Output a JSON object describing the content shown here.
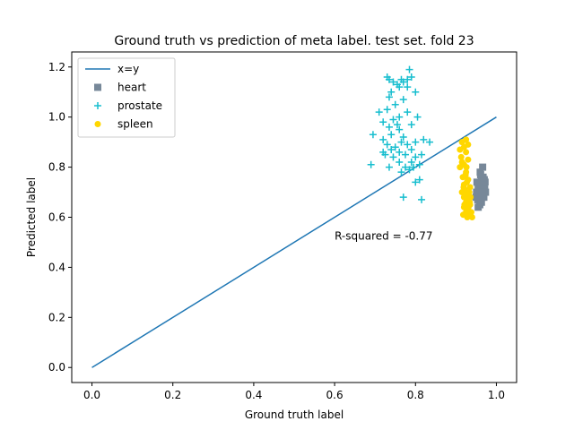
{
  "chart_data": {
    "type": "scatter",
    "title": "Ground truth vs prediction of meta label. test set. fold 23",
    "xlabel": "Ground truth label",
    "ylabel": "Predicted label",
    "xlim": [
      -0.05,
      1.05
    ],
    "ylim": [
      -0.06,
      1.26
    ],
    "xticks": [
      0.0,
      0.2,
      0.4,
      0.6,
      0.8,
      1.0
    ],
    "xtick_labels": [
      "0.0",
      "0.2",
      "0.4",
      "0.6",
      "0.8",
      "1.0"
    ],
    "yticks": [
      0.0,
      0.2,
      0.4,
      0.6,
      0.8,
      1.0,
      1.2
    ],
    "ytick_labels": [
      "0.0",
      "0.2",
      "0.4",
      "0.6",
      "0.8",
      "1.0",
      "1.2"
    ],
    "grid": false,
    "legend_position": "top-left",
    "annotation": {
      "text": "R-squared = -0.77",
      "x": 0.6,
      "y": 0.5
    },
    "reference_line": {
      "name": "x=y",
      "color": "#1f77b4",
      "x": [
        0.0,
        1.0
      ],
      "y": [
        0.0,
        1.0
      ]
    },
    "series": [
      {
        "name": "heart",
        "marker": "square",
        "color": "#778899",
        "points": [
          [
            0.955,
            0.64
          ],
          [
            0.96,
            0.66
          ],
          [
            0.962,
            0.69
          ],
          [
            0.958,
            0.71
          ],
          [
            0.965,
            0.73
          ],
          [
            0.95,
            0.68
          ],
          [
            0.968,
            0.7
          ],
          [
            0.97,
            0.72
          ],
          [
            0.963,
            0.75
          ],
          [
            0.972,
            0.74
          ],
          [
            0.96,
            0.78
          ],
          [
            0.966,
            0.8
          ],
          [
            0.954,
            0.67
          ],
          [
            0.959,
            0.65
          ],
          [
            0.961,
            0.7
          ],
          [
            0.967,
            0.76
          ],
          [
            0.969,
            0.68
          ],
          [
            0.957,
            0.72
          ],
          [
            0.964,
            0.74
          ],
          [
            0.971,
            0.71
          ],
          [
            0.953,
            0.69
          ],
          [
            0.962,
            0.67
          ],
          [
            0.966,
            0.72
          ],
          [
            0.96,
            0.73
          ],
          [
            0.958,
            0.7
          ],
          [
            0.965,
            0.69
          ],
          [
            0.963,
            0.66
          ],
          [
            0.97,
            0.75
          ],
          [
            0.956,
            0.71
          ],
          [
            0.968,
            0.73
          ],
          [
            0.951,
            0.7
          ],
          [
            0.955,
            0.72
          ],
          [
            0.973,
            0.7
          ],
          [
            0.952,
            0.74
          ],
          [
            0.962,
            0.71
          ],
          [
            0.966,
            0.68
          ],
          [
            0.961,
            0.77
          ],
          [
            0.969,
            0.71
          ],
          [
            0.957,
            0.68
          ],
          [
            0.964,
            0.7
          ]
        ]
      },
      {
        "name": "prostate",
        "marker": "plus",
        "color": "#17becf",
        "points": [
          [
            0.735,
            1.15
          ],
          [
            0.745,
            1.14
          ],
          [
            0.765,
            1.15
          ],
          [
            0.78,
            1.15
          ],
          [
            0.77,
            1.14
          ],
          [
            0.73,
            1.16
          ],
          [
            0.755,
            1.13
          ],
          [
            0.785,
            1.19
          ],
          [
            0.79,
            1.16
          ],
          [
            0.76,
            1.12
          ],
          [
            0.74,
            1.1
          ],
          [
            0.78,
            1.12
          ],
          [
            0.77,
            1.07
          ],
          [
            0.8,
            1.1
          ],
          [
            0.735,
            1.08
          ],
          [
            0.75,
            1.05
          ],
          [
            0.73,
            1.03
          ],
          [
            0.71,
            1.02
          ],
          [
            0.72,
            0.98
          ],
          [
            0.735,
            0.96
          ],
          [
            0.76,
            1.0
          ],
          [
            0.78,
            1.02
          ],
          [
            0.79,
            0.97
          ],
          [
            0.805,
            1.0
          ],
          [
            0.745,
            0.99
          ],
          [
            0.76,
            0.95
          ],
          [
            0.77,
            0.92
          ],
          [
            0.74,
            0.93
          ],
          [
            0.72,
            0.91
          ],
          [
            0.695,
            0.93
          ],
          [
            0.73,
            0.89
          ],
          [
            0.75,
            0.88
          ],
          [
            0.765,
            0.9
          ],
          [
            0.78,
            0.89
          ],
          [
            0.8,
            0.9
          ],
          [
            0.82,
            0.91
          ],
          [
            0.835,
            0.9
          ],
          [
            0.79,
            0.87
          ],
          [
            0.775,
            0.85
          ],
          [
            0.76,
            0.86
          ],
          [
            0.74,
            0.87
          ],
          [
            0.725,
            0.85
          ],
          [
            0.72,
            0.86
          ],
          [
            0.745,
            0.84
          ],
          [
            0.76,
            0.82
          ],
          [
            0.775,
            0.8
          ],
          [
            0.79,
            0.82
          ],
          [
            0.81,
            0.81
          ],
          [
            0.795,
            0.8
          ],
          [
            0.8,
            0.84
          ],
          [
            0.815,
            0.85
          ],
          [
            0.69,
            0.81
          ],
          [
            0.735,
            0.8
          ],
          [
            0.765,
            0.78
          ],
          [
            0.81,
            0.75
          ],
          [
            0.8,
            0.74
          ],
          [
            0.77,
            0.68
          ],
          [
            0.815,
            0.67
          ],
          [
            0.785,
            0.79
          ],
          [
            0.755,
            0.97
          ]
        ]
      },
      {
        "name": "spleen",
        "marker": "circle",
        "color": "#ffd700",
        "points": [
          [
            0.915,
            0.9
          ],
          [
            0.925,
            0.91
          ],
          [
            0.93,
            0.89
          ],
          [
            0.92,
            0.88
          ],
          [
            0.91,
            0.87
          ],
          [
            0.925,
            0.86
          ],
          [
            0.915,
            0.82
          ],
          [
            0.92,
            0.81
          ],
          [
            0.93,
            0.83
          ],
          [
            0.91,
            0.8
          ],
          [
            0.925,
            0.78
          ],
          [
            0.93,
            0.75
          ],
          [
            0.92,
            0.73
          ],
          [
            0.935,
            0.72
          ],
          [
            0.915,
            0.7
          ],
          [
            0.928,
            0.69
          ],
          [
            0.92,
            0.68
          ],
          [
            0.932,
            0.67
          ],
          [
            0.925,
            0.66
          ],
          [
            0.935,
            0.65
          ],
          [
            0.92,
            0.64
          ],
          [
            0.93,
            0.63
          ],
          [
            0.925,
            0.62
          ],
          [
            0.918,
            0.61
          ],
          [
            0.935,
            0.61
          ],
          [
            0.94,
            0.6
          ],
          [
            0.928,
            0.6
          ],
          [
            0.938,
            0.62
          ],
          [
            0.922,
            0.71
          ],
          [
            0.933,
            0.7
          ],
          [
            0.927,
            0.74
          ],
          [
            0.917,
            0.76
          ],
          [
            0.936,
            0.68
          ],
          [
            0.924,
            0.77
          ],
          [
            0.919,
            0.72
          ],
          [
            0.931,
            0.64
          ],
          [
            0.926,
            0.8
          ],
          [
            0.913,
            0.84
          ],
          [
            0.934,
            0.66
          ],
          [
            0.921,
            0.65
          ]
        ]
      }
    ]
  }
}
